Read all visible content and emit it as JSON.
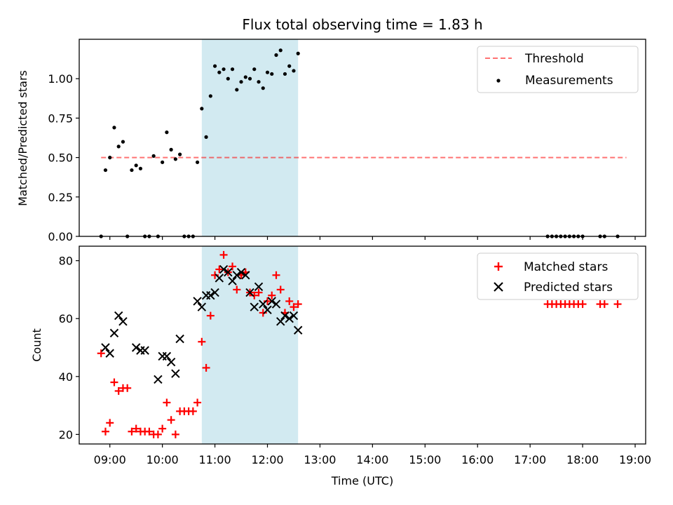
{
  "chart_data": [
    {
      "type": "scatter",
      "title": "Flux total observing time = 1.83 h",
      "xlabel": "",
      "ylabel": "Matched/Predicted stars",
      "xlim": [
        "08:25",
        "19:12"
      ],
      "ylim": [
        0,
        1.25
      ],
      "yticks": [
        "0.00",
        "0.25",
        "0.50",
        "0.75",
        "1.00"
      ],
      "xticks": [
        "09:00",
        "10:00",
        "11:00",
        "12:00",
        "13:00",
        "14:00",
        "15:00",
        "16:00",
        "17:00",
        "18:00",
        "19:00"
      ],
      "shaded_interval": [
        "10:45",
        "12:35"
      ],
      "shade_color": "#add8e6",
      "threshold": {
        "name": "Threshold",
        "value": 0.5,
        "x_range": [
          "08:50",
          "18:50"
        ],
        "color": "#ff0000"
      },
      "legend_position": "top-right",
      "series": [
        {
          "name": "Measurements",
          "color": "#000000",
          "points": [
            [
              "08:50",
              0.0
            ],
            [
              "08:55",
              0.42
            ],
            [
              "09:00",
              0.5
            ],
            [
              "09:05",
              0.69
            ],
            [
              "09:10",
              0.57
            ],
            [
              "09:15",
              0.6
            ],
            [
              "09:20",
              0.0
            ],
            [
              "09:25",
              0.42
            ],
            [
              "09:30",
              0.45
            ],
            [
              "09:35",
              0.43
            ],
            [
              "09:40",
              0.0
            ],
            [
              "09:45",
              0.0
            ],
            [
              "09:50",
              0.51
            ],
            [
              "09:55",
              0.0
            ],
            [
              "10:00",
              0.47
            ],
            [
              "10:05",
              0.66
            ],
            [
              "10:10",
              0.55
            ],
            [
              "10:15",
              0.49
            ],
            [
              "10:20",
              0.52
            ],
            [
              "10:25",
              0.0
            ],
            [
              "10:30",
              0.0
            ],
            [
              "10:35",
              0.0
            ],
            [
              "10:40",
              0.47
            ],
            [
              "10:45",
              0.81
            ],
            [
              "10:50",
              0.63
            ],
            [
              "10:55",
              0.89
            ],
            [
              "11:00",
              1.08
            ],
            [
              "11:05",
              1.04
            ],
            [
              "11:10",
              1.06
            ],
            [
              "11:15",
              1.0
            ],
            [
              "11:20",
              1.06
            ],
            [
              "11:25",
              0.93
            ],
            [
              "11:30",
              0.98
            ],
            [
              "11:35",
              1.01
            ],
            [
              "11:40",
              1.0
            ],
            [
              "11:45",
              1.06
            ],
            [
              "11:50",
              0.98
            ],
            [
              "11:55",
              0.94
            ],
            [
              "12:00",
              1.04
            ],
            [
              "12:05",
              1.03
            ],
            [
              "12:10",
              1.15
            ],
            [
              "12:15",
              1.18
            ],
            [
              "12:20",
              1.03
            ],
            [
              "12:25",
              1.08
            ],
            [
              "12:30",
              1.05
            ],
            [
              "12:35",
              1.16
            ],
            [
              "17:20",
              0.0
            ],
            [
              "17:25",
              0.0
            ],
            [
              "17:30",
              0.0
            ],
            [
              "17:35",
              0.0
            ],
            [
              "17:40",
              0.0
            ],
            [
              "17:45",
              0.0
            ],
            [
              "17:50",
              0.0
            ],
            [
              "17:55",
              0.0
            ],
            [
              "18:00",
              0.0
            ],
            [
              "18:20",
              0.0
            ],
            [
              "18:25",
              0.0
            ],
            [
              "18:40",
              0.0
            ]
          ]
        }
      ]
    },
    {
      "type": "scatter",
      "title": "",
      "xlabel": "Time (UTC)",
      "ylabel": "Count",
      "xlim": [
        "08:25",
        "19:12"
      ],
      "ylim": [
        16.7,
        85
      ],
      "yticks": [
        "20",
        "40",
        "60",
        "80"
      ],
      "xticks": [
        "09:00",
        "10:00",
        "11:00",
        "12:00",
        "13:00",
        "14:00",
        "15:00",
        "16:00",
        "17:00",
        "18:00",
        "19:00"
      ],
      "shaded_interval": [
        "10:45",
        "12:35"
      ],
      "shade_color": "#add8e6",
      "legend_position": "top-right",
      "series": [
        {
          "name": "Matched stars",
          "marker": "plus",
          "color": "#ff0000",
          "points": [
            [
              "08:50",
              48
            ],
            [
              "08:55",
              21
            ],
            [
              "09:00",
              24
            ],
            [
              "09:05",
              38
            ],
            [
              "09:10",
              35
            ],
            [
              "09:15",
              36
            ],
            [
              "09:20",
              36
            ],
            [
              "09:25",
              21
            ],
            [
              "09:30",
              22
            ],
            [
              "09:35",
              21
            ],
            [
              "09:40",
              21
            ],
            [
              "09:45",
              21
            ],
            [
              "09:50",
              20
            ],
            [
              "09:55",
              20
            ],
            [
              "10:00",
              22
            ],
            [
              "10:05",
              31
            ],
            [
              "10:10",
              25
            ],
            [
              "10:15",
              20
            ],
            [
              "10:20",
              28
            ],
            [
              "10:25",
              28
            ],
            [
              "10:30",
              28
            ],
            [
              "10:35",
              28
            ],
            [
              "10:40",
              31
            ],
            [
              "10:45",
              52
            ],
            [
              "10:50",
              43
            ],
            [
              "10:55",
              61
            ],
            [
              "11:00",
              75
            ],
            [
              "11:05",
              77
            ],
            [
              "11:10",
              82
            ],
            [
              "11:15",
              76
            ],
            [
              "11:20",
              78
            ],
            [
              "11:25",
              70
            ],
            [
              "11:30",
              75
            ],
            [
              "11:35",
              76
            ],
            [
              "11:40",
              69
            ],
            [
              "11:45",
              68
            ],
            [
              "11:50",
              69
            ],
            [
              "11:55",
              62
            ],
            [
              "12:00",
              66
            ],
            [
              "12:05",
              68
            ],
            [
              "12:10",
              75
            ],
            [
              "12:15",
              70
            ],
            [
              "12:20",
              62
            ],
            [
              "12:25",
              66
            ],
            [
              "12:30",
              64
            ],
            [
              "12:35",
              65
            ],
            [
              "17:20",
              65
            ],
            [
              "17:25",
              65
            ],
            [
              "17:30",
              65
            ],
            [
              "17:35",
              65
            ],
            [
              "17:40",
              65
            ],
            [
              "17:45",
              65
            ],
            [
              "17:50",
              65
            ],
            [
              "17:55",
              65
            ],
            [
              "18:00",
              65
            ],
            [
              "18:20",
              65
            ],
            [
              "18:25",
              65
            ],
            [
              "18:40",
              65
            ]
          ]
        },
        {
          "name": "Predicted stars",
          "marker": "x",
          "color": "#000000",
          "points": [
            [
              "08:55",
              50
            ],
            [
              "09:00",
              48
            ],
            [
              "09:05",
              55
            ],
            [
              "09:10",
              61
            ],
            [
              "09:15",
              59
            ],
            [
              "09:30",
              50
            ],
            [
              "09:35",
              49
            ],
            [
              "09:40",
              49
            ],
            [
              "09:55",
              39
            ],
            [
              "10:00",
              47
            ],
            [
              "10:05",
              47
            ],
            [
              "10:10",
              45
            ],
            [
              "10:15",
              41
            ],
            [
              "10:20",
              53
            ],
            [
              "10:40",
              66
            ],
            [
              "10:45",
              64
            ],
            [
              "10:50",
              68
            ],
            [
              "10:55",
              68
            ],
            [
              "11:00",
              69
            ],
            [
              "11:05",
              74
            ],
            [
              "11:10",
              77
            ],
            [
              "11:15",
              76
            ],
            [
              "11:20",
              73
            ],
            [
              "11:25",
              75
            ],
            [
              "11:30",
              76
            ],
            [
              "11:35",
              75
            ],
            [
              "11:40",
              69
            ],
            [
              "11:45",
              64
            ],
            [
              "11:50",
              71
            ],
            [
              "11:55",
              65
            ],
            [
              "12:00",
              63
            ],
            [
              "12:05",
              66
            ],
            [
              "12:10",
              65
            ],
            [
              "12:15",
              59
            ],
            [
              "12:20",
              61
            ],
            [
              "12:25",
              60
            ],
            [
              "12:30",
              61
            ],
            [
              "12:35",
              56
            ]
          ]
        }
      ]
    }
  ]
}
